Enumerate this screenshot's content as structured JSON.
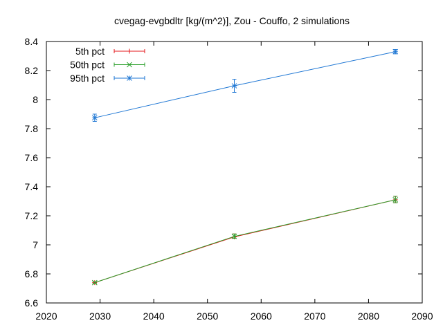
{
  "chart_data": {
    "type": "line",
    "title": "cvegag-evgbdltr [kg/(m^2)], Zou - Couffo, 2 simulations",
    "xlabel": "",
    "ylabel": "",
    "xlim": [
      2020,
      2090
    ],
    "ylim": [
      6.6,
      8.4
    ],
    "xticks": [
      2020,
      2030,
      2040,
      2050,
      2060,
      2070,
      2080,
      2090
    ],
    "yticks": [
      6.6,
      6.8,
      7,
      7.2,
      7.4,
      7.6,
      7.8,
      8,
      8.2,
      8.4
    ],
    "x": [
      2029,
      2055,
      2085
    ],
    "grid": false,
    "legend_position": "top-left",
    "series": [
      {
        "name": "5th pct",
        "color": "#e41a1c",
        "marker": "plus",
        "values": [
          6.74,
          7.055,
          7.31
        ],
        "err_low": [
          6.735,
          7.045,
          7.29
        ],
        "err_high": [
          6.745,
          7.075,
          7.335
        ]
      },
      {
        "name": "50th pct",
        "color": "#2ca02c",
        "marker": "x",
        "values": [
          6.74,
          7.058,
          7.31
        ],
        "err_low": [
          6.735,
          7.045,
          7.29
        ],
        "err_high": [
          6.745,
          7.075,
          7.335
        ]
      },
      {
        "name": "95th pct",
        "color": "#1f77d4",
        "marker": "star",
        "values": [
          7.875,
          8.095,
          8.33
        ],
        "err_low": [
          7.85,
          8.05,
          8.315
        ],
        "err_high": [
          7.9,
          8.14,
          8.345
        ]
      }
    ]
  }
}
